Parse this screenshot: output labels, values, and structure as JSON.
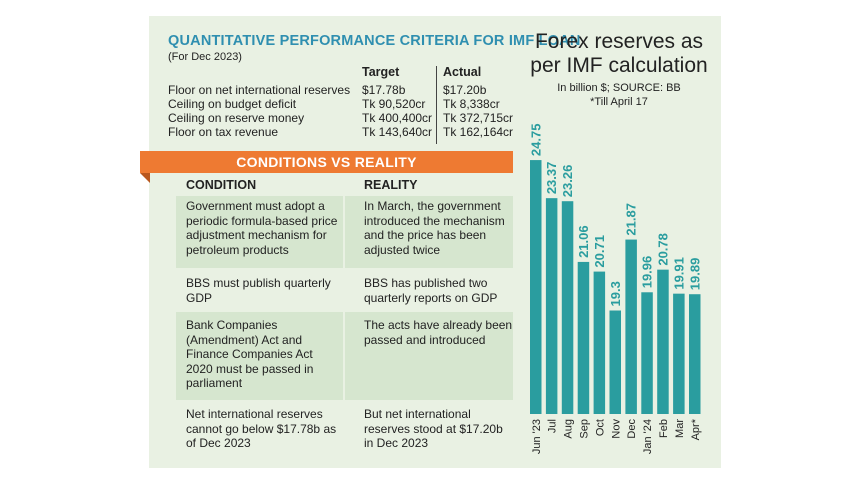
{
  "criteria": {
    "title": "QUANTITATIVE PERFORMANCE CRITERIA FOR IMF LOAN",
    "subtitle": "(For Dec 2023)",
    "headers": {
      "target": "Target",
      "actual": "Actual"
    },
    "rows": [
      {
        "label": "Floor on net international reserves",
        "target": "$17.78b",
        "actual": "$17.20b"
      },
      {
        "label": "Ceiling on budget deficit",
        "target": "Tk 90,520cr",
        "actual": "Tk 8,338cr"
      },
      {
        "label": "Ceiling on reserve money",
        "target": "Tk 400,400cr",
        "actual": "Tk 372,715cr"
      },
      {
        "label": "Floor on tax revenue",
        "target": "Tk 143,640cr",
        "actual": "Tk 162,164cr"
      }
    ]
  },
  "conditions": {
    "banner": "CONDITIONS VS REALITY",
    "headers": {
      "condition": "CONDITION",
      "reality": "REALITY"
    },
    "rows": [
      {
        "condition": [
          "Government must adopt a",
          "periodic formula-based price",
          "adjustment mechanism for",
          "petroleum products"
        ],
        "reality": [
          "In March, the government",
          "introduced the mechanism",
          "and the price has been",
          "adjusted twice"
        ]
      },
      {
        "condition": [
          "BBS must publish quarterly",
          "GDP"
        ],
        "reality": [
          "BBS has published two",
          "quarterly reports on GDP"
        ]
      },
      {
        "condition": [
          "Bank Companies",
          "(Amendment) Act and",
          "Finance Companies Act",
          "2020 must be passed in",
          "parliament"
        ],
        "reality": [
          "The acts have already been",
          "passed and introduced"
        ]
      },
      {
        "condition": [
          "Net international reserves",
          "cannot go below $17.78b as",
          "of Dec 2023"
        ],
        "reality": [
          "But net international",
          "reserves stood at $17.20b",
          "in Dec 2023"
        ]
      }
    ]
  },
  "chart_data": {
    "type": "bar",
    "title": "Forex reserves as per IMF calculation",
    "unit": "In billion $; SOURCE: BB",
    "note": "*Till April 17",
    "categories": [
      "Jun '23",
      "Jul",
      "Aug",
      "Sep",
      "Oct",
      "Nov",
      "Dec",
      "Jan '24",
      "Feb",
      "Mar",
      "Apr*"
    ],
    "values": [
      24.75,
      23.37,
      23.26,
      21.06,
      20.71,
      19.3,
      21.87,
      19.96,
      20.78,
      19.91,
      19.89
    ],
    "value_labels": [
      "24.75",
      "23.37",
      "23.26",
      "21.06",
      "20.71",
      "19.3",
      "21.87",
      "19.96",
      "20.78",
      "19.91",
      "19.89"
    ],
    "bar_color": "#2a9d9f",
    "label_color": "#2a9d9f",
    "grid": false,
    "legend": "none"
  }
}
